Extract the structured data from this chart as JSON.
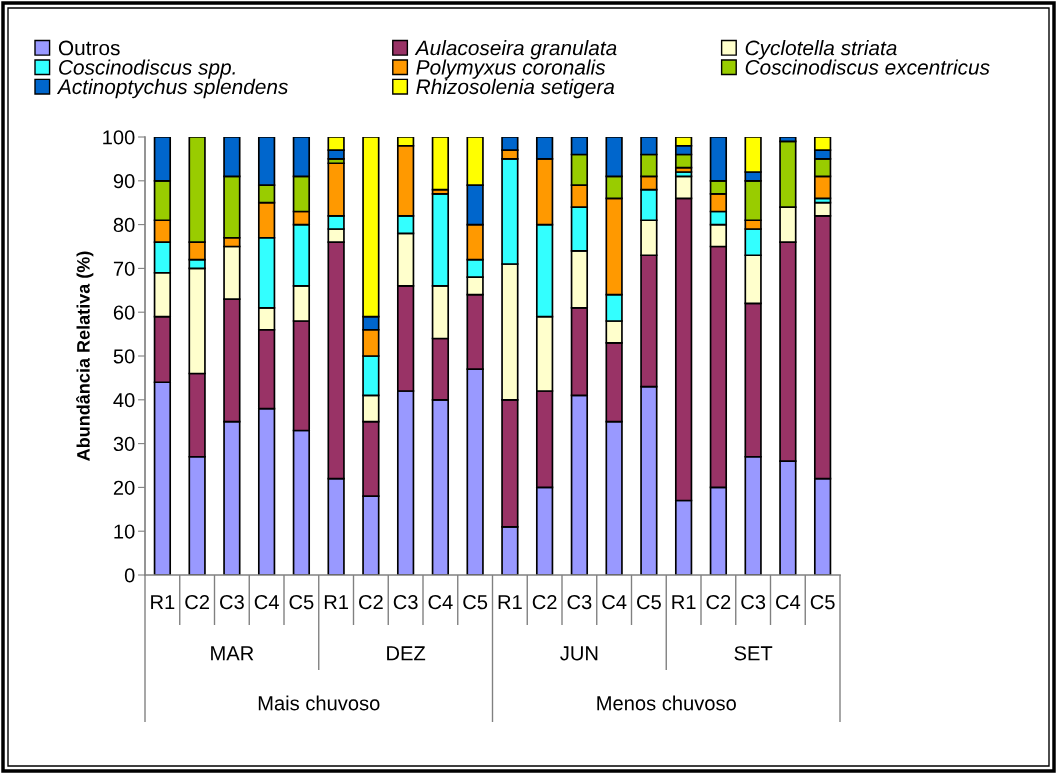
{
  "chart_data": {
    "type": "bar",
    "stacked": true,
    "ylabel": "Abundância Relativa (%)",
    "categories": [
      "R1",
      "C2",
      "C3",
      "C4",
      "C5",
      "R1",
      "C2",
      "C3",
      "C4",
      "C5",
      "R1",
      "C2",
      "C3",
      "C4",
      "C5",
      "R1",
      "C2",
      "C3",
      "C4",
      "C5"
    ],
    "series": [
      {
        "name": "Outros",
        "color": "#9999ff",
        "values": [
          44,
          27,
          35,
          38,
          33,
          22,
          18,
          42,
          40,
          47,
          11,
          20,
          41,
          35,
          43,
          17,
          20,
          27,
          26,
          22
        ]
      },
      {
        "name": "Aulacoseira granulata",
        "color": "#993366",
        "values": [
          15,
          19,
          28,
          18,
          25,
          54,
          17,
          24,
          14,
          17,
          29,
          22,
          20,
          18,
          30,
          69,
          55,
          35,
          50,
          60
        ]
      },
      {
        "name": "Cyclotella striata",
        "color": "#ffffcc",
        "values": [
          10,
          24,
          12,
          5,
          8,
          3,
          6,
          12,
          12,
          4,
          31,
          17,
          13,
          5,
          8,
          5,
          5,
          11,
          8,
          3
        ]
      },
      {
        "name": "Coscinodiscus spp.",
        "color": "#33ffff",
        "values": [
          7,
          2,
          0,
          16,
          14,
          3,
          9,
          4,
          21,
          4,
          24,
          21,
          10,
          6,
          7,
          1,
          3,
          6,
          0,
          1
        ]
      },
      {
        "name": "Polymyxus coronalis",
        "color": "#ff9900",
        "values": [
          5,
          4,
          2,
          8,
          3,
          12,
          6,
          16,
          1,
          8,
          2,
          15,
          5,
          22,
          3,
          1,
          4,
          2,
          0,
          5
        ]
      },
      {
        "name": "Coscinodiscus excentricus",
        "color": "#99cc00",
        "values": [
          9,
          24,
          14,
          4,
          8,
          1,
          0,
          0,
          0,
          0,
          0,
          0,
          7,
          5,
          5,
          3,
          3,
          9,
          15,
          4
        ]
      },
      {
        "name": "Actinoptychus splendens",
        "color": "#0066cc",
        "values": [
          10,
          0,
          9,
          11,
          9,
          2,
          3,
          0,
          0,
          9,
          3,
          5,
          4,
          9,
          4,
          2,
          10,
          2,
          1,
          2
        ]
      },
      {
        "name": "Rhizosolenia setigera",
        "color": "#ffff00",
        "values": [
          0,
          0,
          0,
          0,
          0,
          3,
          41,
          2,
          12,
          11,
          0,
          0,
          0,
          0,
          0,
          2,
          0,
          8,
          0,
          3
        ]
      }
    ],
    "ylim": [
      0,
      100
    ],
    "yticks": [
      0,
      10,
      20,
      30,
      40,
      50,
      60,
      70,
      80,
      90,
      100
    ],
    "legend": "top",
    "annotations": [
      "MAR",
      "DEZ",
      "JUN",
      "SET",
      "Mais chuvoso",
      "Menos chuvoso"
    ]
  }
}
